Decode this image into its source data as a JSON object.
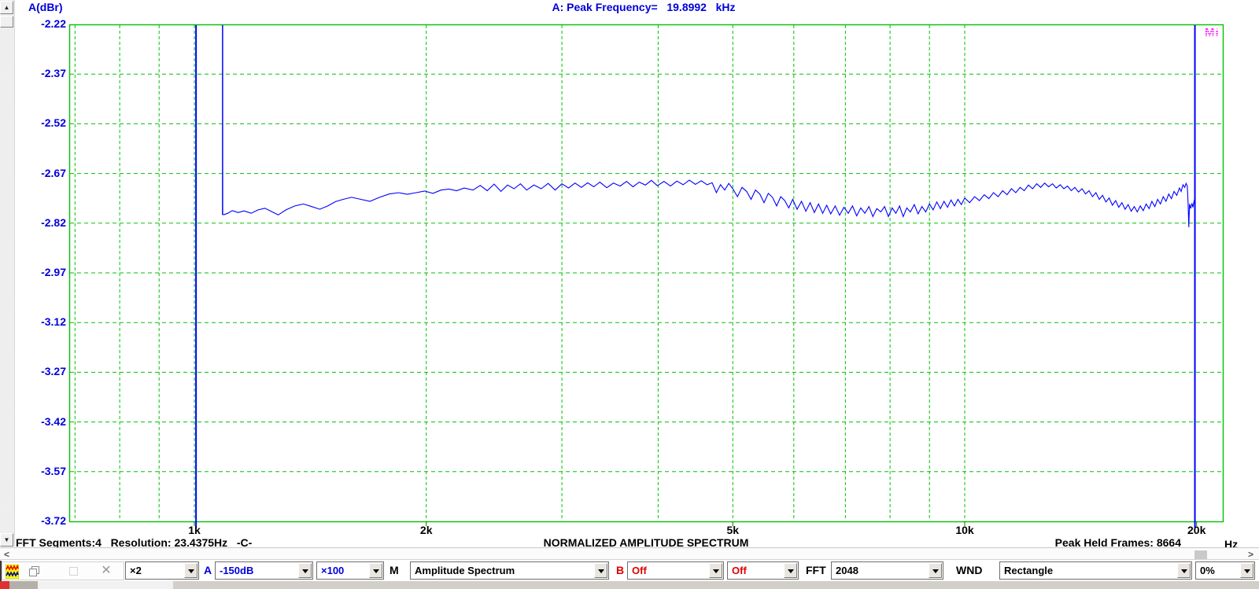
{
  "header": {
    "axis_label": "A(dBr)",
    "peak_readout": "A: Peak Frequency=   19.8992   kHz",
    "logo": "Mi"
  },
  "chart_data": {
    "type": "line",
    "title": "NORMALIZED AMPLITUDE SPECTRUM",
    "ylabel": "A(dBr)",
    "xlabel": "Hz",
    "x_scale": "log",
    "x_range_hz": [
      686,
      21600
    ],
    "ylim": [
      -3.72,
      -2.22
    ],
    "y_ticks": [
      -2.22,
      -2.37,
      -2.52,
      -2.67,
      -2.82,
      -2.97,
      -3.12,
      -3.27,
      -3.42,
      -3.57,
      -3.72
    ],
    "x_major_ticks": [
      {
        "hz": 1000,
        "label": "1k"
      },
      {
        "hz": 2000,
        "label": "2k"
      },
      {
        "hz": 5000,
        "label": "5k"
      },
      {
        "hz": 10000,
        "label": "10k"
      },
      {
        "hz": 20000,
        "label": "20k"
      }
    ],
    "x_gridlines_hz": [
      700,
      800,
      900,
      1000,
      2000,
      3000,
      4000,
      5000,
      6000,
      7000,
      8000,
      9000,
      10000
    ],
    "grid_on": true,
    "grid_color": "#00c300",
    "trace_color": "#0000ff",
    "peak_frequency_khz": 19.8992,
    "offscale_spikes_hz": [
      1005,
      19899
    ],
    "lead_in": {
      "hz": 1088,
      "to_db": -2.795
    },
    "series": [
      {
        "name": "A",
        "points": [
          [
            1090,
            -2.795
          ],
          [
            1105,
            -2.79
          ],
          [
            1120,
            -2.782
          ],
          [
            1140,
            -2.788
          ],
          [
            1160,
            -2.783
          ],
          [
            1185,
            -2.79
          ],
          [
            1210,
            -2.78
          ],
          [
            1235,
            -2.775
          ],
          [
            1260,
            -2.785
          ],
          [
            1285,
            -2.795
          ],
          [
            1315,
            -2.78
          ],
          [
            1350,
            -2.768
          ],
          [
            1385,
            -2.762
          ],
          [
            1420,
            -2.77
          ],
          [
            1455,
            -2.778
          ],
          [
            1490,
            -2.768
          ],
          [
            1525,
            -2.755
          ],
          [
            1560,
            -2.748
          ],
          [
            1600,
            -2.742
          ],
          [
            1645,
            -2.748
          ],
          [
            1690,
            -2.754
          ],
          [
            1740,
            -2.742
          ],
          [
            1790,
            -2.732
          ],
          [
            1840,
            -2.728
          ],
          [
            1890,
            -2.733
          ],
          [
            1940,
            -2.728
          ],
          [
            1990,
            -2.723
          ],
          [
            2040,
            -2.73
          ],
          [
            2090,
            -2.72
          ],
          [
            2140,
            -2.717
          ],
          [
            2190,
            -2.722
          ],
          [
            2240,
            -2.714
          ],
          [
            2300,
            -2.72
          ],
          [
            2350,
            -2.706
          ],
          [
            2400,
            -2.722
          ],
          [
            2450,
            -2.702
          ],
          [
            2500,
            -2.724
          ],
          [
            2550,
            -2.705
          ],
          [
            2600,
            -2.716
          ],
          [
            2650,
            -2.701
          ],
          [
            2700,
            -2.72
          ],
          [
            2760,
            -2.705
          ],
          [
            2820,
            -2.716
          ],
          [
            2880,
            -2.7
          ],
          [
            2940,
            -2.72
          ],
          [
            3000,
            -2.701
          ],
          [
            3060,
            -2.714
          ],
          [
            3120,
            -2.699
          ],
          [
            3180,
            -2.712
          ],
          [
            3240,
            -2.698
          ],
          [
            3300,
            -2.71
          ],
          [
            3360,
            -2.696
          ],
          [
            3430,
            -2.713
          ],
          [
            3500,
            -2.699
          ],
          [
            3570,
            -2.708
          ],
          [
            3640,
            -2.694
          ],
          [
            3710,
            -2.71
          ],
          [
            3780,
            -2.696
          ],
          [
            3850,
            -2.705
          ],
          [
            3920,
            -2.691
          ],
          [
            3990,
            -2.707
          ],
          [
            4070,
            -2.694
          ],
          [
            4150,
            -2.708
          ],
          [
            4230,
            -2.693
          ],
          [
            4310,
            -2.704
          ],
          [
            4390,
            -2.69
          ],
          [
            4470,
            -2.703
          ],
          [
            4550,
            -2.692
          ],
          [
            4630,
            -2.704
          ],
          [
            4700,
            -2.698
          ],
          [
            4760,
            -2.728
          ],
          [
            4820,
            -2.704
          ],
          [
            4880,
            -2.72
          ],
          [
            4940,
            -2.7
          ],
          [
            5000,
            -2.716
          ],
          [
            5070,
            -2.74
          ],
          [
            5140,
            -2.712
          ],
          [
            5210,
            -2.724
          ],
          [
            5280,
            -2.748
          ],
          [
            5350,
            -2.72
          ],
          [
            5420,
            -2.732
          ],
          [
            5490,
            -2.758
          ],
          [
            5560,
            -2.73
          ],
          [
            5630,
            -2.742
          ],
          [
            5700,
            -2.768
          ],
          [
            5770,
            -2.74
          ],
          [
            5840,
            -2.752
          ],
          [
            5910,
            -2.774
          ],
          [
            5980,
            -2.748
          ],
          [
            6060,
            -2.778
          ],
          [
            6140,
            -2.754
          ],
          [
            6220,
            -2.784
          ],
          [
            6300,
            -2.758
          ],
          [
            6380,
            -2.788
          ],
          [
            6460,
            -2.762
          ],
          [
            6540,
            -2.79
          ],
          [
            6620,
            -2.766
          ],
          [
            6700,
            -2.792
          ],
          [
            6790,
            -2.768
          ],
          [
            6880,
            -2.796
          ],
          [
            6970,
            -2.772
          ],
          [
            7060,
            -2.79
          ],
          [
            7150,
            -2.768
          ],
          [
            7240,
            -2.798
          ],
          [
            7330,
            -2.774
          ],
          [
            7420,
            -2.79
          ],
          [
            7510,
            -2.77
          ],
          [
            7600,
            -2.8
          ],
          [
            7690,
            -2.776
          ],
          [
            7780,
            -2.786
          ],
          [
            7870,
            -2.77
          ],
          [
            7960,
            -2.8
          ],
          [
            8050,
            -2.774
          ],
          [
            8140,
            -2.79
          ],
          [
            8230,
            -2.768
          ],
          [
            8320,
            -2.8
          ],
          [
            8410,
            -2.774
          ],
          [
            8500,
            -2.786
          ],
          [
            8600,
            -2.764
          ],
          [
            8700,
            -2.792
          ],
          [
            8800,
            -2.77
          ],
          [
            8900,
            -2.786
          ],
          [
            9000,
            -2.762
          ],
          [
            9100,
            -2.78
          ],
          [
            9200,
            -2.756
          ],
          [
            9300,
            -2.776
          ],
          [
            9400,
            -2.754
          ],
          [
            9500,
            -2.772
          ],
          [
            9600,
            -2.75
          ],
          [
            9700,
            -2.768
          ],
          [
            9800,
            -2.748
          ],
          [
            9900,
            -2.764
          ],
          [
            10000,
            -2.744
          ],
          [
            10150,
            -2.758
          ],
          [
            10300,
            -2.74
          ],
          [
            10450,
            -2.752
          ],
          [
            10600,
            -2.734
          ],
          [
            10750,
            -2.746
          ],
          [
            10900,
            -2.728
          ],
          [
            11050,
            -2.74
          ],
          [
            11200,
            -2.722
          ],
          [
            11350,
            -2.734
          ],
          [
            11500,
            -2.716
          ],
          [
            11650,
            -2.728
          ],
          [
            11800,
            -2.712
          ],
          [
            11950,
            -2.722
          ],
          [
            12100,
            -2.705
          ],
          [
            12250,
            -2.716
          ],
          [
            12400,
            -2.701
          ],
          [
            12550,
            -2.712
          ],
          [
            12700,
            -2.699
          ],
          [
            12850,
            -2.71
          ],
          [
            13000,
            -2.701
          ],
          [
            13150,
            -2.714
          ],
          [
            13300,
            -2.704
          ],
          [
            13450,
            -2.716
          ],
          [
            13600,
            -2.708
          ],
          [
            13750,
            -2.722
          ],
          [
            13900,
            -2.712
          ],
          [
            14050,
            -2.726
          ],
          [
            14200,
            -2.716
          ],
          [
            14350,
            -2.732
          ],
          [
            14500,
            -2.722
          ],
          [
            14650,
            -2.74
          ],
          [
            14800,
            -2.728
          ],
          [
            14950,
            -2.748
          ],
          [
            15100,
            -2.736
          ],
          [
            15250,
            -2.756
          ],
          [
            15400,
            -2.744
          ],
          [
            15550,
            -2.766
          ],
          [
            15700,
            -2.752
          ],
          [
            15850,
            -2.772
          ],
          [
            16000,
            -2.758
          ],
          [
            16150,
            -2.778
          ],
          [
            16300,
            -2.764
          ],
          [
            16450,
            -2.784
          ],
          [
            16600,
            -2.77
          ],
          [
            16750,
            -2.786
          ],
          [
            16900,
            -2.768
          ],
          [
            17050,
            -2.782
          ],
          [
            17200,
            -2.762
          ],
          [
            17350,
            -2.776
          ],
          [
            17500,
            -2.754
          ],
          [
            17650,
            -2.77
          ],
          [
            17800,
            -2.748
          ],
          [
            17950,
            -2.762
          ],
          [
            18100,
            -2.74
          ],
          [
            18250,
            -2.754
          ],
          [
            18400,
            -2.732
          ],
          [
            18550,
            -2.746
          ],
          [
            18700,
            -2.724
          ],
          [
            18850,
            -2.736
          ],
          [
            19000,
            -2.714
          ],
          [
            19100,
            -2.724
          ],
          [
            19200,
            -2.704
          ],
          [
            19300,
            -2.712
          ],
          [
            19380,
            -2.7
          ],
          [
            19450,
            -2.708
          ],
          [
            19500,
            -2.76
          ],
          [
            19540,
            -2.832
          ],
          [
            19580,
            -2.762
          ],
          [
            19650,
            -2.776
          ],
          [
            19720,
            -2.76
          ],
          [
            19780,
            -2.772
          ],
          [
            19840,
            -2.756
          ],
          [
            19880,
            -2.748
          ],
          [
            19899,
            -2.752
          ]
        ]
      }
    ]
  },
  "status_bar": {
    "left": "FFT Segments:4   Resolution: 23.4375Hz   -C-",
    "right": "Peak Held Frames: 8664",
    "x_unit": "Hz"
  },
  "toolbar": {
    "zoom_combo": "×2",
    "a_label": "A",
    "a_range_combo": "-150dB",
    "a_zoom_combo": "×100",
    "m_label": "M",
    "mode_combo": "Amplitude Spectrum",
    "b_label": "B",
    "b_mode_combo": "Off",
    "b_mode2_combo": "Off",
    "fft_label": "FFT",
    "fft_size_combo": "2048",
    "wnd_label": "WND",
    "wnd_combo": "Rectangle",
    "overlap_combo": "0%"
  }
}
